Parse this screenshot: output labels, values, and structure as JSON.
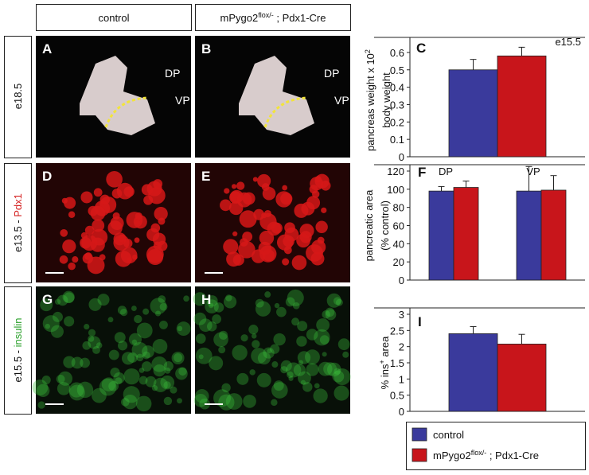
{
  "header": {
    "control": "control",
    "mutant": {
      "base": "mPygo2",
      "sup": "flox/-",
      "rest": " ; Pdx1-Cre"
    }
  },
  "rows": [
    {
      "stage": "e18.5"
    },
    {
      "stage": "e13.5 - ",
      "stain": "Pdx1"
    },
    {
      "stage": "e15.5 - ",
      "stain": "insulin"
    }
  ],
  "panels": [
    {
      "label": "A",
      "annotations": [
        "DP",
        "VP"
      ]
    },
    {
      "label": "B",
      "annotations": [
        "DP",
        "VP"
      ]
    },
    {
      "label": "D"
    },
    {
      "label": "E"
    },
    {
      "label": "G"
    },
    {
      "label": "H"
    }
  ],
  "legend": [
    {
      "text": "control",
      "color": "#3a3a9c"
    },
    {
      "base": "mPygo2",
      "sup": "flox/-",
      "rest": " ; Pdx1-Cre",
      "color": "#c8151b"
    }
  ],
  "chart_data": [
    {
      "type": "bar",
      "panel": "C",
      "annotation": "e15.5",
      "ylabel": [
        {
          "text": "pancreas weight x 10",
          "sup": "2"
        },
        {
          "text": "body weight"
        }
      ],
      "categories": [
        null
      ],
      "ylim": [
        0,
        0.65
      ],
      "yticks": [
        0,
        0.1,
        0.2,
        0.3,
        0.4,
        0.5,
        0.6
      ],
      "series": [
        {
          "color": "#3a3a9c",
          "values": [
            0.5
          ],
          "errors": [
            0.06
          ]
        },
        {
          "color": "#c8151b",
          "values": [
            0.58
          ],
          "errors": [
            0.05
          ]
        }
      ]
    },
    {
      "type": "bar",
      "panel": "F",
      "ylabel": [
        {
          "text": "pancreatic area"
        },
        {
          "text": "(% control)"
        }
      ],
      "categories": [
        "DP",
        "VP"
      ],
      "ylim": [
        0,
        120
      ],
      "yticks": [
        0,
        20,
        40,
        60,
        80,
        100,
        120
      ],
      "series": [
        {
          "color": "#3a3a9c",
          "values": [
            98,
            98
          ],
          "errors": [
            5,
            27
          ]
        },
        {
          "color": "#c8151b",
          "values": [
            102,
            99
          ],
          "errors": [
            7,
            16
          ]
        }
      ]
    },
    {
      "type": "bar",
      "panel": "I",
      "ylabel": [
        {
          "text": "% ins",
          "sup": "+",
          "rest": " area"
        }
      ],
      "categories": [
        null
      ],
      "ylim": [
        0,
        3
      ],
      "yticks": [
        0,
        0.5,
        1,
        1.5,
        2,
        2.5,
        3
      ],
      "series": [
        {
          "color": "#3a3a9c",
          "values": [
            2.4
          ],
          "errors": [
            0.22
          ]
        },
        {
          "color": "#c8151b",
          "values": [
            2.08
          ],
          "errors": [
            0.3
          ]
        }
      ]
    }
  ]
}
